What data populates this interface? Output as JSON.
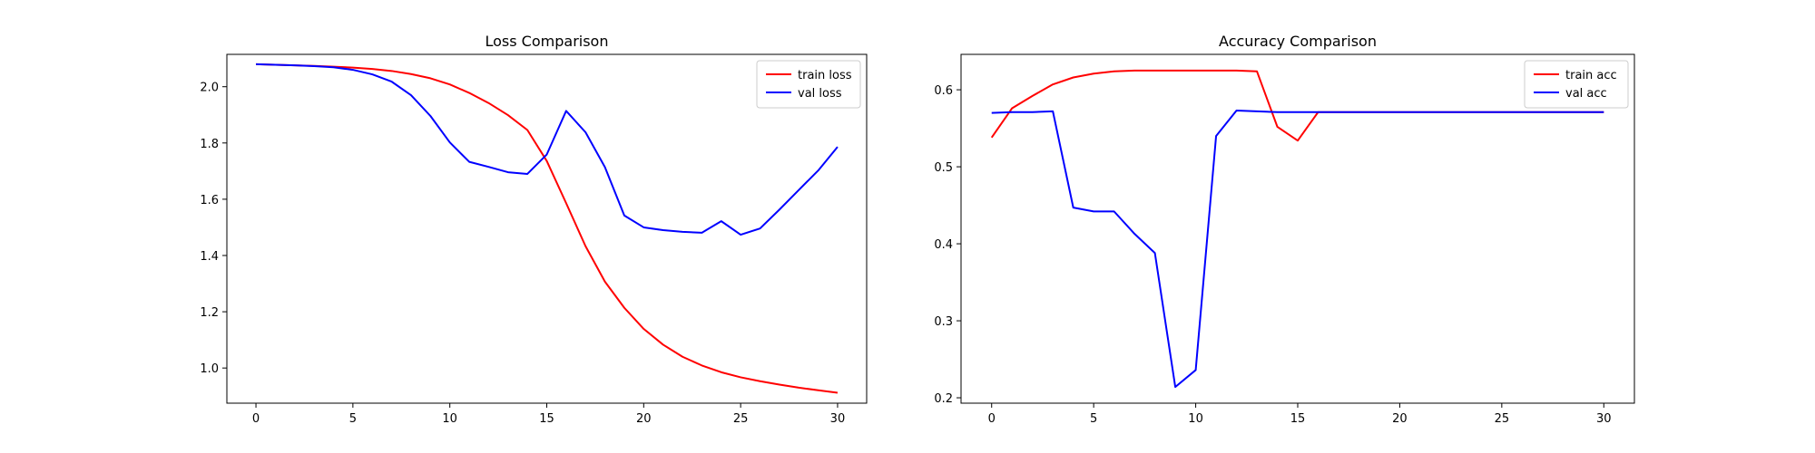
{
  "chart_data": [
    {
      "type": "line",
      "title": "Loss Comparison",
      "xlabel": "",
      "ylabel": "",
      "xlim": [
        -1.5,
        31.5
      ],
      "ylim": [
        0.875,
        2.115
      ],
      "xticks": [
        0,
        5,
        10,
        15,
        20,
        25,
        30
      ],
      "yticks": [
        1.0,
        1.2,
        1.4,
        1.6,
        1.8,
        2.0
      ],
      "ytick_labels": [
        "1.0",
        "1.2",
        "1.4",
        "1.6",
        "1.8",
        "2.0"
      ],
      "grid": false,
      "legend_position": "top-right",
      "x": [
        0,
        1,
        2,
        3,
        4,
        5,
        6,
        7,
        8,
        9,
        10,
        11,
        12,
        13,
        14,
        15,
        16,
        17,
        18,
        19,
        20,
        21,
        22,
        23,
        24,
        25,
        26,
        27,
        28,
        29,
        30
      ],
      "series": [
        {
          "name": "train loss",
          "color": "#ff0000",
          "values": [
            2.08,
            2.078,
            2.076,
            2.074,
            2.071,
            2.068,
            2.063,
            2.056,
            2.045,
            2.03,
            2.008,
            1.978,
            1.942,
            1.899,
            1.846,
            1.736,
            1.586,
            1.433,
            1.307,
            1.214,
            1.139,
            1.083,
            1.04,
            1.009,
            0.985,
            0.967,
            0.953,
            0.941,
            0.93,
            0.921,
            0.912
          ]
        },
        {
          "name": "val loss",
          "color": "#0000ff",
          "values": [
            2.08,
            2.078,
            2.076,
            2.073,
            2.069,
            2.06,
            2.044,
            2.018,
            1.97,
            1.896,
            1.802,
            1.733,
            1.715,
            1.696,
            1.69,
            1.759,
            1.914,
            1.838,
            1.714,
            1.542,
            1.5,
            1.49,
            1.484,
            1.481,
            1.522,
            1.474,
            1.496,
            1.563,
            1.633,
            1.702,
            1.786
          ]
        }
      ]
    },
    {
      "type": "line",
      "title": "Accuracy Comparison",
      "xlabel": "",
      "ylabel": "",
      "xlim": [
        -1.5,
        31.5
      ],
      "ylim": [
        0.193,
        0.646
      ],
      "xticks": [
        0,
        5,
        10,
        15,
        20,
        25,
        30
      ],
      "yticks": [
        0.2,
        0.3,
        0.4,
        0.5,
        0.6
      ],
      "ytick_labels": [
        "0.2",
        "0.3",
        "0.4",
        "0.5",
        "0.6"
      ],
      "grid": false,
      "legend_position": "top-right",
      "x": [
        0,
        1,
        2,
        3,
        4,
        5,
        6,
        7,
        8,
        9,
        10,
        11,
        12,
        13,
        14,
        15,
        16,
        17,
        18,
        19,
        20,
        21,
        22,
        23,
        24,
        25,
        26,
        27,
        28,
        29,
        30
      ],
      "series": [
        {
          "name": "train acc",
          "color": "#ff0000",
          "values": [
            0.538,
            0.576,
            0.592,
            0.607,
            0.616,
            0.621,
            0.624,
            0.625,
            0.625,
            0.625,
            0.625,
            0.625,
            0.625,
            0.624,
            0.552,
            0.534,
            0.571,
            0.571,
            0.571,
            0.571,
            0.571,
            0.571,
            0.571,
            0.571,
            0.571,
            0.571,
            0.571,
            0.571,
            0.571,
            0.571,
            0.571
          ]
        },
        {
          "name": "val acc",
          "color": "#0000ff",
          "values": [
            0.57,
            0.571,
            0.571,
            0.572,
            0.447,
            0.442,
            0.442,
            0.413,
            0.388,
            0.214,
            0.236,
            0.54,
            0.573,
            0.572,
            0.571,
            0.571,
            0.571,
            0.571,
            0.571,
            0.571,
            0.571,
            0.571,
            0.571,
            0.571,
            0.571,
            0.571,
            0.571,
            0.571,
            0.571,
            0.571,
            0.571
          ]
        }
      ]
    }
  ]
}
